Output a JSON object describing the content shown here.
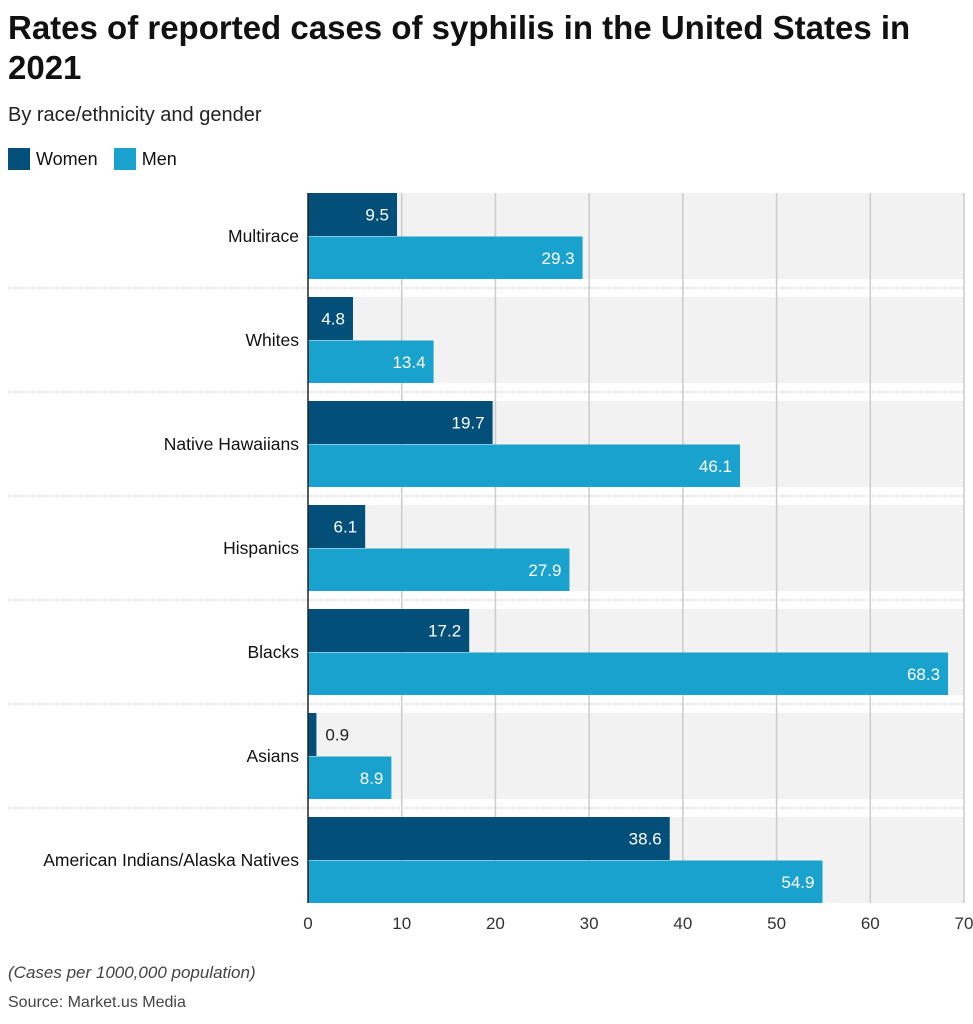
{
  "title": "Rates of reported cases of syphilis in the United States in 2021",
  "subtitle": "By race/ethnicity and gender",
  "note": "(Cases per 1000,000 population)",
  "source": "Source: Market.us Media",
  "colors": {
    "Women": "#02507a",
    "Men": "#1aa2cf",
    "band": "#f2f2f2",
    "grid": "#cccccc"
  },
  "chart_data": {
    "type": "bar",
    "orientation": "horizontal",
    "categories": [
      "Multirace",
      "Whites",
      "Native Hawaiians",
      "Hispanics",
      "Blacks",
      "Asians",
      "American Indians/Alaska Natives"
    ],
    "series": [
      {
        "name": "Women",
        "values": [
          9.5,
          4.8,
          19.7,
          6.1,
          17.2,
          0.9,
          38.6
        ]
      },
      {
        "name": "Men",
        "values": [
          29.3,
          13.4,
          46.1,
          27.9,
          68.3,
          8.9,
          54.9
        ]
      }
    ],
    "xlim": [
      0,
      70
    ],
    "xticks": [
      0,
      10,
      20,
      30,
      40,
      50,
      60,
      70
    ],
    "grid": true,
    "legend": "top-left",
    "xlabel": "",
    "ylabel": ""
  }
}
